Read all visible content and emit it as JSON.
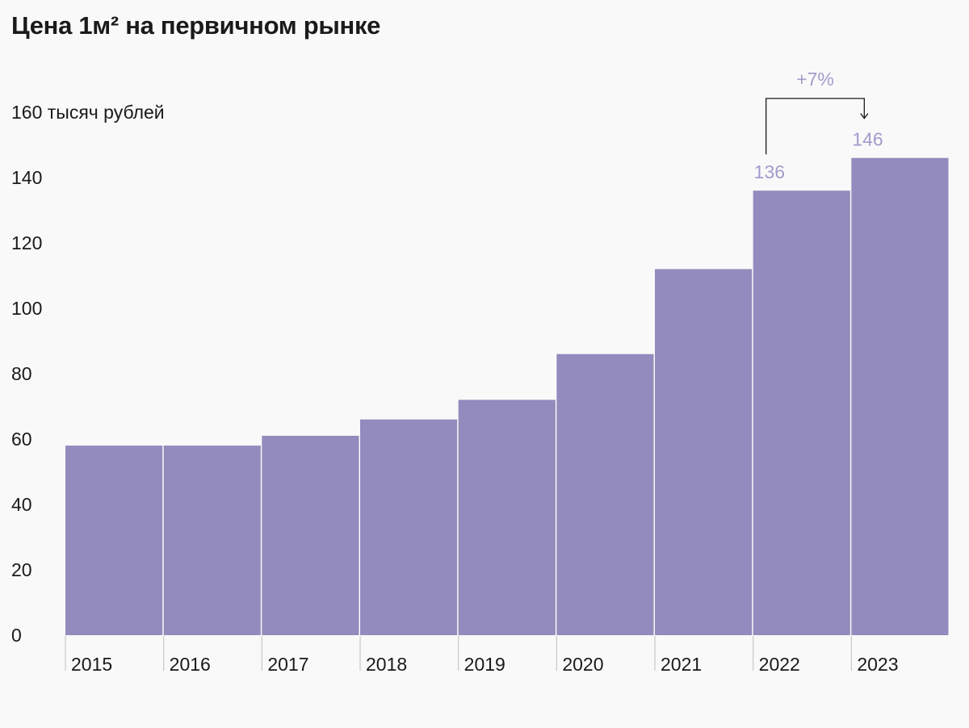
{
  "title": "Цена 1м² на первичном рынке",
  "colors": {
    "bar": "#938bbd",
    "label": "#a39bcc",
    "background": "#f9f9f9",
    "divider": "#ffffff",
    "axis_tick": "#c8c8c8",
    "text": "#1a1a1a"
  },
  "chart_data": {
    "type": "bar",
    "title": "Цена 1м² на первичном рынке",
    "ylabel": "160 тысяч рублей",
    "xlabel": "",
    "categories": [
      "2015",
      "2016",
      "2017",
      "2018",
      "2019",
      "2020",
      "2021",
      "2022",
      "2023"
    ],
    "values": [
      58,
      58,
      61,
      66,
      72,
      86,
      112,
      136,
      146
    ],
    "ylim": [
      0,
      160
    ],
    "yticks": [
      0,
      20,
      40,
      60,
      80,
      100,
      120,
      140
    ],
    "top_tick_label": "160 тысяч рублей",
    "grid": false,
    "data_labels": [
      {
        "category": "2022",
        "text": "136"
      },
      {
        "category": "2023",
        "text": "146"
      }
    ],
    "annotation": {
      "from": "2022",
      "to": "2023",
      "text": "+7%"
    }
  }
}
